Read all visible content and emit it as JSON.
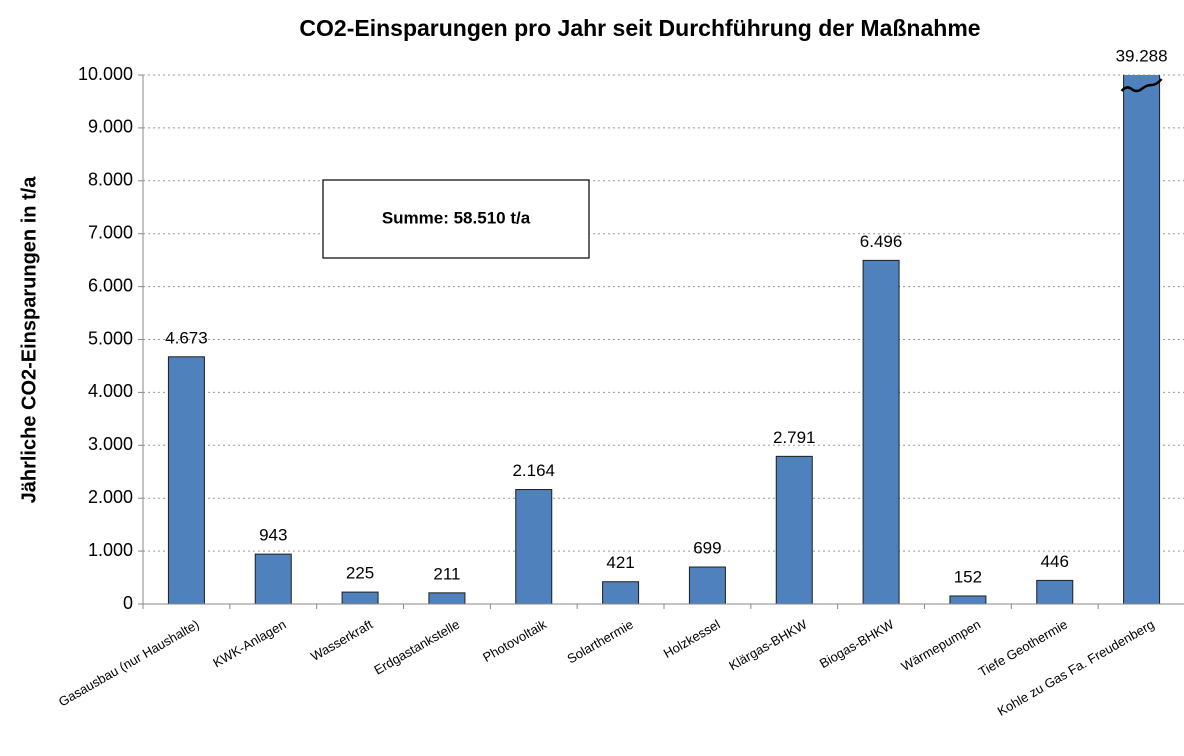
{
  "chart_data": {
    "type": "bar",
    "title": "CO2-Einsparungen pro Jahr seit Durchführung der Maßnahme",
    "y_label": "Jährliche CO2-Einsparungen in t/a",
    "annotation": "Summe: 58.510 t/a",
    "categories": [
      "Gasausbau (nur Haushalte)",
      "KWK-Anlagen",
      "Wasserkraft",
      "Erdgastankstelle",
      "Photovoltaik",
      "Solarthermie",
      "Holzkessel",
      "Klärgas-BHKW",
      "Biogas-BHKW",
      "Wärmepumpen",
      "Tiefe Geothermie",
      "Kohle zu Gas Fa. Freudenberg"
    ],
    "values": [
      4673,
      943,
      225,
      211,
      2164,
      421,
      699,
      2791,
      6496,
      152,
      446,
      39288
    ],
    "value_labels": [
      "4.673",
      "943",
      "225",
      "211",
      "2.164",
      "421",
      "699",
      "2.791",
      "6.496",
      "152",
      "446",
      "39.288"
    ],
    "color": "#4f81bd",
    "ylim": [
      0,
      10000
    ],
    "yticks": [
      0,
      {
        "value": 1000,
        "label": "1.000"
      },
      {
        "value": 2000,
        "label": "2.000"
      },
      {
        "value": 3000,
        "label": "3.000"
      },
      {
        "value": 4000,
        "label": "4.000"
      },
      {
        "value": 5000,
        "label": "5.000"
      },
      {
        "value": 6000,
        "label": "6.000"
      },
      {
        "value": 7000,
        "label": "7.000"
      },
      {
        "value": 8000,
        "label": "8.000"
      },
      {
        "value": 9000,
        "label": "9.000"
      },
      {
        "value": 10000,
        "label": "10.000"
      }
    ],
    "grid": true
  }
}
